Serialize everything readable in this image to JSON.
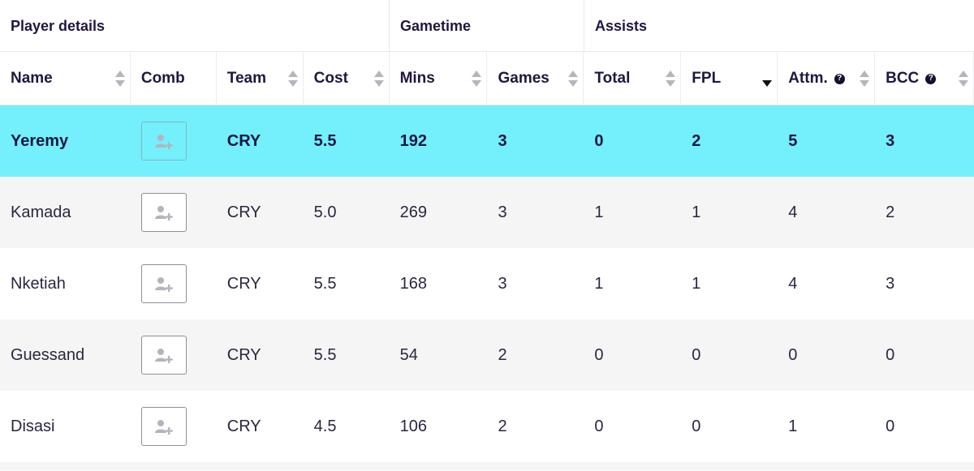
{
  "groups": {
    "player_details": "Player details",
    "gametime": "Gametime",
    "assists": "Assists"
  },
  "columns": [
    {
      "key": "name",
      "label": "Name",
      "sortable": true
    },
    {
      "key": "comb",
      "label": "Comb",
      "sortable": false
    },
    {
      "key": "team",
      "label": "Team",
      "sortable": true
    },
    {
      "key": "cost",
      "label": "Cost",
      "sortable": true
    },
    {
      "key": "mins",
      "label": "Mins",
      "sortable": true
    },
    {
      "key": "games",
      "label": "Games",
      "sortable": true
    },
    {
      "key": "total",
      "label": "Total",
      "sortable": true
    },
    {
      "key": "fpl",
      "label": "FPL",
      "sortable": true,
      "sorted": "descending"
    },
    {
      "key": "attm",
      "label": "Attm.",
      "sortable": true,
      "help": true
    },
    {
      "key": "bcc",
      "label": "BCC",
      "sortable": true,
      "help": true
    }
  ],
  "help_glyph": "?",
  "sort_icon": "sort-arrows-icon",
  "comb_icon": "add-user-icon",
  "colors": {
    "highlight": "#73f0fb",
    "zebra": "#f5f5f5",
    "text_dark": "#1d1640"
  },
  "rows": [
    {
      "name": "Yeremy",
      "team": "CRY",
      "cost": "5.5",
      "mins": "192",
      "games": "3",
      "total": "0",
      "fpl": "2",
      "attm": "5",
      "bcc": "3",
      "highlighted": true
    },
    {
      "name": "Kamada",
      "team": "CRY",
      "cost": "5.0",
      "mins": "269",
      "games": "3",
      "total": "1",
      "fpl": "1",
      "attm": "4",
      "bcc": "2"
    },
    {
      "name": "Nketiah",
      "team": "CRY",
      "cost": "5.5",
      "mins": "168",
      "games": "3",
      "total": "1",
      "fpl": "1",
      "attm": "4",
      "bcc": "3"
    },
    {
      "name": "Guessand",
      "team": "CRY",
      "cost": "5.5",
      "mins": "54",
      "games": "2",
      "total": "0",
      "fpl": "0",
      "attm": "0",
      "bcc": "0"
    },
    {
      "name": "Disasi",
      "team": "CRY",
      "cost": "4.5",
      "mins": "106",
      "games": "2",
      "total": "0",
      "fpl": "0",
      "attm": "1",
      "bcc": "0"
    }
  ]
}
